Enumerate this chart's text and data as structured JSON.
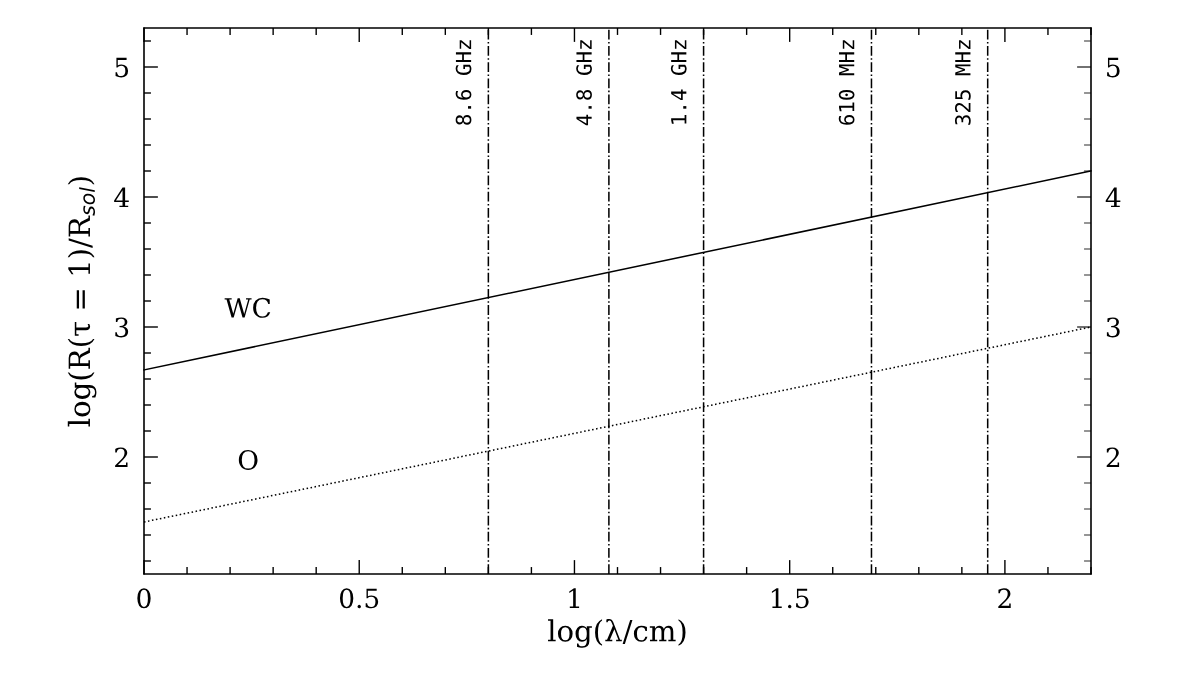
{
  "chart_data": {
    "type": "line",
    "xlabel": "log(λ/cm)",
    "ylabel": "log(R(τ = 1)/R$_{sol}$)",
    "series": [
      {
        "name": "WC",
        "color": "#000000",
        "line_style": "solid",
        "values": [
          2.67,
          4.2
        ]
      },
      {
        "name": "O",
        "color": "#000000",
        "line_style": "dotted",
        "values": [
          1.5,
          3.0
        ]
      }
    ],
    "x": [
      0,
      2.2
    ],
    "xlim": [
      0,
      2.2
    ],
    "xticks": [
      0,
      0.5,
      1,
      1.5,
      2
    ],
    "ylim": [
      1.1,
      5.3
    ],
    "yticks": [
      2,
      3,
      4,
      5
    ],
    "y2lim": [
      1.1,
      5.3
    ],
    "y2ticks": [
      2,
      3,
      4,
      5
    ],
    "ref_lines": [
      {
        "axis": "x",
        "value": 0.8,
        "label": "8.6 GHz",
        "line_style": "dashdot",
        "color": "#000000"
      },
      {
        "axis": "x",
        "value": 1.08,
        "label": "4.8 GHz",
        "line_style": "dashdot",
        "color": "#000000"
      },
      {
        "axis": "x",
        "value": 1.3,
        "label": "1.4 GHz",
        "line_style": "dashdot",
        "color": "#000000"
      },
      {
        "axis": "x",
        "value": 1.69,
        "label": "610 MHz",
        "line_style": "dashdot",
        "color": "#000000"
      },
      {
        "axis": "x",
        "value": 1.96,
        "label": "325 MHz",
        "line_style": "dashdot",
        "color": "#000000"
      }
    ],
    "grid": false,
    "legend": false
  }
}
